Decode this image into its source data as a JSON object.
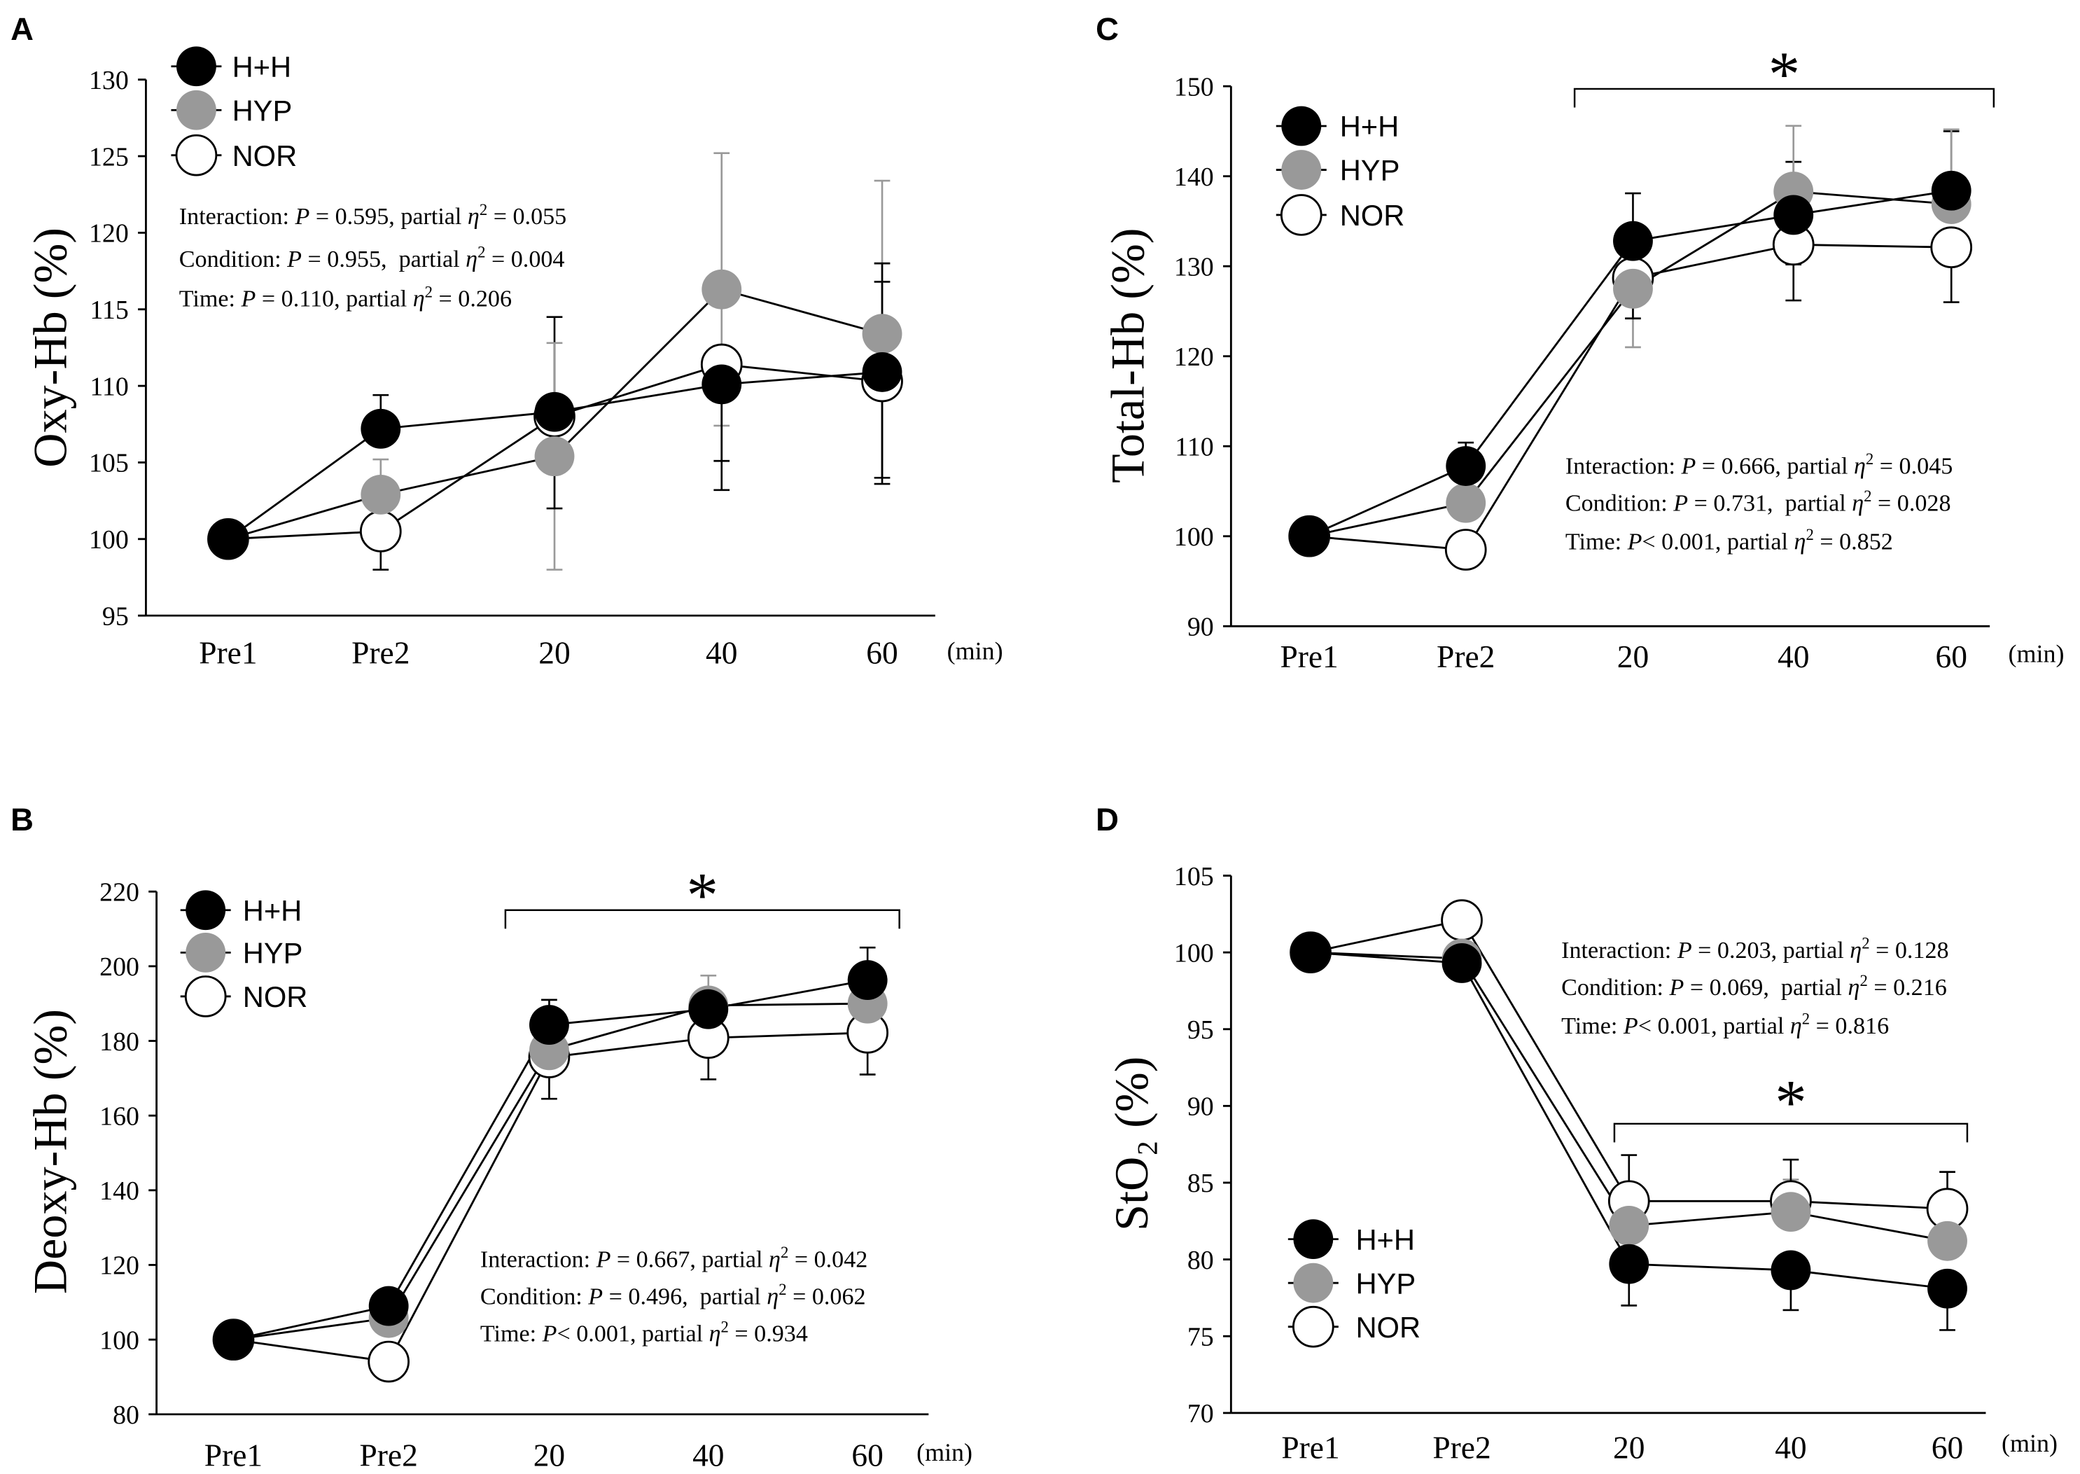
{
  "chart_data": [
    {
      "panel": "A",
      "type": "line",
      "ylabel": "Oxy-Hb (%)",
      "x_unit": "(min)",
      "categories": [
        "Pre1",
        "Pre2",
        "20",
        "40",
        "60"
      ],
      "ylim": [
        95,
        130
      ],
      "yticks": [
        95,
        100,
        105,
        110,
        115,
        120,
        125,
        130
      ],
      "series": [
        {
          "name": "H+H",
          "color": "#000000",
          "values": [
            100,
            107.2,
            108.3,
            110.1,
            110.9
          ],
          "err_high": [
            null,
            109.4,
            114.5,
            null,
            116.8
          ],
          "err_low": [
            null,
            null,
            null,
            103.2,
            104.0
          ]
        },
        {
          "name": "HYP",
          "color": "#999999",
          "values": [
            100,
            102.9,
            105.4,
            116.3,
            113.4
          ],
          "err_high": [
            null,
            105.2,
            112.8,
            125.2,
            123.4
          ],
          "err_low": [
            null,
            null,
            98.0,
            107.4,
            null
          ]
        },
        {
          "name": "NOR",
          "color": "#ffffff",
          "values": [
            100,
            100.5,
            108.0,
            111.4,
            110.3
          ],
          "err_high": [
            null,
            null,
            null,
            null,
            118.0
          ],
          "err_low": [
            null,
            98.0,
            102.0,
            105.1,
            103.6
          ]
        }
      ],
      "stats": [
        {
          "label": "Interaction: ",
          "p": "P",
          "p_text": " = 0.595, partial ",
          "eta": "η",
          "eta_exp": "2",
          "eta_text": " = 0.055"
        },
        {
          "label": "Condition: ",
          "p": "P",
          "p_text": " = 0.955,  partial ",
          "eta": "η",
          "eta_exp": "2",
          "eta_text": " = 0.004"
        },
        {
          "label": "Time: ",
          "p": "P",
          "p_text": " = 0.110, partial ",
          "eta": "η",
          "eta_exp": "2",
          "eta_text": " = 0.206"
        }
      ],
      "significance": []
    },
    {
      "panel": "B",
      "type": "line",
      "ylabel": "Deoxy-Hb (%)",
      "x_unit": "(min)",
      "categories": [
        "Pre1",
        "Pre2",
        "20",
        "40",
        "60"
      ],
      "ylim": [
        80,
        220
      ],
      "yticks": [
        80,
        100,
        120,
        140,
        160,
        180,
        200,
        220
      ],
      "series": [
        {
          "name": "H+H",
          "color": "#000000",
          "values": [
            100,
            109.0,
            184.3,
            188.5,
            196.3
          ],
          "err_high": [
            null,
            null,
            191.0,
            192.5,
            205.0
          ],
          "err_low": [
            null,
            null,
            null,
            null,
            null
          ]
        },
        {
          "name": "HYP",
          "color": "#999999",
          "values": [
            100,
            105.8,
            177.5,
            189.5,
            190.0
          ],
          "err_high": [
            null,
            null,
            null,
            197.5,
            null
          ],
          "err_low": [
            null,
            null,
            null,
            null,
            null
          ]
        },
        {
          "name": "NOR",
          "color": "#ffffff",
          "values": [
            100,
            94.1,
            175.6,
            180.8,
            182.2
          ],
          "err_high": [
            null,
            null,
            null,
            null,
            null
          ],
          "err_low": [
            null,
            null,
            164.5,
            169.7,
            171.0
          ]
        }
      ],
      "stats": [
        {
          "label": "Interaction: ",
          "p": "P",
          "p_text": " = 0.667, partial ",
          "eta": "η",
          "eta_exp": "2",
          "eta_text": " = 0.042"
        },
        {
          "label": "Condition: ",
          "p": "P",
          "p_text": " = 0.496,  partial ",
          "eta": "η",
          "eta_exp": "2",
          "eta_text": " = 0.062"
        },
        {
          "label": "Time: ",
          "p": "P",
          "p_text": "< 0.001, partial ",
          "eta": "η",
          "eta_exp": "2",
          "eta_text": " = 0.934"
        }
      ],
      "significance": [
        {
          "label": "*",
          "span": [
            2,
            4
          ]
        }
      ]
    },
    {
      "panel": "C",
      "type": "line",
      "ylabel": "Total-Hb (%)",
      "x_unit": "(min)",
      "categories": [
        "Pre1",
        "Pre2",
        "20",
        "40",
        "60"
      ],
      "ylim": [
        90,
        150
      ],
      "yticks": [
        90,
        100,
        110,
        120,
        130,
        140,
        150
      ],
      "series": [
        {
          "name": "H+H",
          "color": "#000000",
          "values": [
            100,
            107.8,
            132.8,
            135.7,
            138.4
          ],
          "err_high": [
            null,
            110.4,
            138.1,
            141.6,
            145.0
          ],
          "err_low": [
            null,
            null,
            null,
            130.2,
            null
          ]
        },
        {
          "name": "HYP",
          "color": "#999999",
          "values": [
            100,
            103.7,
            127.5,
            138.3,
            136.9
          ],
          "err_high": [
            null,
            null,
            null,
            145.6,
            145.2
          ],
          "err_low": [
            null,
            null,
            121.0,
            null,
            null
          ]
        },
        {
          "name": "NOR",
          "color": "#ffffff",
          "values": [
            100,
            98.5,
            128.7,
            132.4,
            132.1
          ],
          "err_high": [
            null,
            null,
            null,
            null,
            null
          ],
          "err_low": [
            null,
            null,
            124.2,
            126.2,
            126.0
          ]
        }
      ],
      "stats": [
        {
          "label": "Interaction: ",
          "p": "P",
          "p_text": " = 0.666, partial ",
          "eta": "η",
          "eta_exp": "2",
          "eta_text": " = 0.045"
        },
        {
          "label": "Condition: ",
          "p": "P",
          "p_text": " = 0.731,  partial ",
          "eta": "η",
          "eta_exp": "2",
          "eta_text": " = 0.028"
        },
        {
          "label": "Time: ",
          "p": "P",
          "p_text": "< 0.001, partial ",
          "eta": "η",
          "eta_exp": "2",
          "eta_text": " = 0.852"
        }
      ],
      "significance": [
        {
          "label": "*",
          "span": [
            2,
            4
          ]
        }
      ]
    },
    {
      "panel": "D",
      "type": "line",
      "ylabel": "StO₂ (%)",
      "x_unit": "(min)",
      "categories": [
        "Pre1",
        "Pre2",
        "20",
        "40",
        "60"
      ],
      "ylim": [
        70,
        105
      ],
      "yticks": [
        70,
        75,
        80,
        85,
        90,
        95,
        100,
        105
      ],
      "series": [
        {
          "name": "H+H",
          "color": "#000000",
          "values": [
            100,
            99.3,
            79.7,
            79.3,
            78.1
          ],
          "err_high": [
            null,
            null,
            null,
            null,
            null
          ],
          "err_low": [
            null,
            null,
            77.0,
            76.7,
            75.4
          ]
        },
        {
          "name": "HYP",
          "color": "#999999",
          "values": [
            100,
            99.6,
            82.2,
            83.1,
            81.2
          ],
          "err_high": [
            null,
            null,
            null,
            85.2,
            null
          ],
          "err_low": [
            null,
            null,
            null,
            null,
            null
          ]
        },
        {
          "name": "NOR",
          "color": "#ffffff",
          "values": [
            100,
            102.1,
            83.8,
            83.8,
            83.3
          ],
          "err_high": [
            null,
            null,
            86.8,
            86.5,
            85.7
          ],
          "err_low": [
            null,
            null,
            null,
            null,
            null
          ]
        }
      ],
      "stats": [
        {
          "label": "Interaction: ",
          "p": "P",
          "p_text": " = 0.203, partial ",
          "eta": "η",
          "eta_exp": "2",
          "eta_text": " = 0.128"
        },
        {
          "label": "Condition: ",
          "p": "P",
          "p_text": " = 0.069,  partial ",
          "eta": "η",
          "eta_exp": "2",
          "eta_text": " = 0.216"
        },
        {
          "label": "Time: ",
          "p": "P",
          "p_text": "< 0.001, partial ",
          "eta": "η",
          "eta_exp": "2",
          "eta_text": " = 0.816"
        }
      ],
      "significance": [
        {
          "label": "*",
          "span": [
            2,
            4
          ]
        }
      ]
    }
  ]
}
